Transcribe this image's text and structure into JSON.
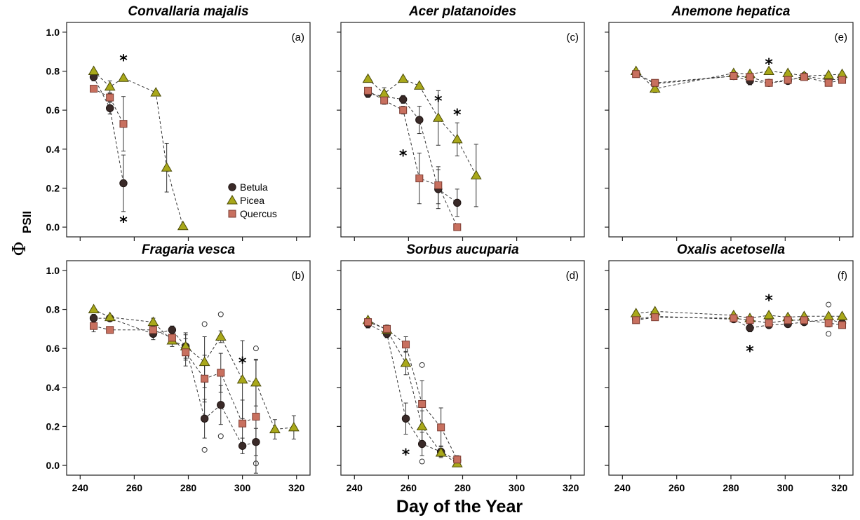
{
  "figure": {
    "xlabel": "Day of the Year",
    "ylabel_main": "Φ",
    "ylabel_sub": "PSII",
    "legend": [
      "Betula",
      "Picea",
      "Quercus"
    ]
  },
  "colors": {
    "betula": "#3a2a28",
    "picea": "#a9a81a",
    "quercus": "#c8705f"
  },
  "chart_data": [
    {
      "type": "scatter",
      "panel": "(a)",
      "title": "Convallaria majalis",
      "xlim": [
        235,
        325
      ],
      "ylim": [
        -0.05,
        1.05
      ],
      "xticks": [
        240,
        260,
        280,
        300,
        320
      ],
      "yticks": [
        "0.0",
        "0.2",
        "0.4",
        "0.6",
        "0.8",
        "1.0"
      ],
      "series": [
        {
          "name": "Betula",
          "x": [
            245,
            251,
            256
          ],
          "y": [
            0.77,
            0.61,
            0.225
          ],
          "err": [
            0.02,
            0.03,
            0.145
          ]
        },
        {
          "name": "Picea",
          "x": [
            245,
            251,
            256,
            268,
            272,
            278
          ],
          "y": [
            0.8,
            0.72,
            0.765,
            0.69,
            0.305,
            0.005
          ],
          "err": [
            0.01,
            0.03,
            0.01,
            0.01,
            0.125,
            0.0
          ]
        },
        {
          "name": "Quercus",
          "x": [
            245,
            251,
            256
          ],
          "y": [
            0.71,
            0.665,
            0.53
          ],
          "err": [
            0.01,
            0.02,
            0.14
          ]
        }
      ],
      "asterisks": [
        [
          256,
          0.88
        ],
        [
          256,
          0.05
        ]
      ]
    },
    {
      "type": "scatter",
      "panel": "(c)",
      "title": "Acer platanoides",
      "xlim": [
        235,
        325
      ],
      "ylim": [
        -0.05,
        1.05
      ],
      "xticks": [
        240,
        260,
        280,
        300,
        320
      ],
      "yticks": [
        "0.0",
        "0.2",
        "0.4",
        "0.6",
        "0.8",
        "1.0"
      ],
      "series": [
        {
          "name": "Betula",
          "x": [
            245,
            251,
            258,
            264,
            271,
            278
          ],
          "y": [
            0.685,
            0.67,
            0.655,
            0.55,
            0.195,
            0.125
          ],
          "err": [
            0.02,
            0.02,
            0.02,
            0.07,
            0.1,
            0.07
          ]
        },
        {
          "name": "Picea",
          "x": [
            245,
            251,
            258,
            264,
            271,
            278,
            285
          ],
          "y": [
            0.76,
            0.685,
            0.76,
            0.725,
            0.56,
            0.45,
            0.265
          ],
          "err": [
            0.01,
            0.03,
            0.01,
            0.01,
            0.14,
            0.085,
            0.16
          ]
        },
        {
          "name": "Quercus",
          "x": [
            245,
            251,
            258,
            264,
            271,
            278
          ],
          "y": [
            0.7,
            0.65,
            0.6,
            0.25,
            0.215,
            0.0
          ],
          "err": [
            0.015,
            0.02,
            0.02,
            0.13,
            0.095,
            0.0
          ]
        }
      ],
      "asterisks": [
        [
          271,
          0.67
        ],
        [
          278,
          0.6
        ],
        [
          258,
          0.39
        ]
      ]
    },
    {
      "type": "scatter",
      "panel": "(e)",
      "title": "Anemone hepatica",
      "xlim": [
        235,
        325
      ],
      "ylim": [
        -0.05,
        1.05
      ],
      "xticks": [
        240,
        260,
        280,
        300,
        320
      ],
      "yticks": [
        "0.0",
        "0.2",
        "0.4",
        "0.6",
        "0.8",
        "1.0"
      ],
      "series": [
        {
          "name": "Betula",
          "x": [
            245,
            252,
            281,
            287,
            294,
            301,
            307,
            316,
            321
          ],
          "y": [
            0.79,
            0.735,
            0.775,
            0.75,
            0.74,
            0.75,
            0.775,
            0.755,
            0.76
          ],
          "err": [
            0.01,
            0.01,
            0.01,
            0.02,
            0.01,
            0.01,
            0.01,
            0.01,
            0.01
          ]
        },
        {
          "name": "Picea",
          "x": [
            245,
            252,
            281,
            287,
            294,
            301,
            307,
            316,
            321
          ],
          "y": [
            0.8,
            0.71,
            0.79,
            0.785,
            0.8,
            0.79,
            0.775,
            0.78,
            0.785
          ],
          "err": [
            0.01,
            0.02,
            0.01,
            0.01,
            0.01,
            0.01,
            0.01,
            0.01,
            0.01
          ]
        },
        {
          "name": "Quercus",
          "x": [
            245,
            252,
            281,
            287,
            294,
            301,
            307,
            316,
            321
          ],
          "y": [
            0.785,
            0.74,
            0.775,
            0.77,
            0.74,
            0.755,
            0.77,
            0.74,
            0.755
          ],
          "err": [
            0.01,
            0.01,
            0.01,
            0.01,
            0.01,
            0.01,
            0.01,
            0.01,
            0.01
          ]
        }
      ],
      "asterisks": [
        [
          294,
          0.86
        ]
      ]
    },
    {
      "type": "scatter",
      "panel": "(b)",
      "title": "Fragaria vesca",
      "xlim": [
        235,
        325
      ],
      "ylim": [
        -0.05,
        1.05
      ],
      "xticks": [
        240,
        260,
        280,
        300,
        320
      ],
      "yticks": [
        "0.0",
        "0.2",
        "0.4",
        "0.6",
        "0.8",
        "1.0"
      ],
      "series": [
        {
          "name": "Betula",
          "x": [
            245,
            251,
            267,
            274,
            279,
            286,
            292,
            300,
            305
          ],
          "y": [
            0.755,
            0.755,
            0.675,
            0.695,
            0.61,
            0.24,
            0.31,
            0.1,
            0.12
          ],
          "err": [
            0.02,
            0.01,
            0.03,
            0.02,
            0.07,
            0.1,
            0.1,
            0.04,
            0.07
          ]
        },
        {
          "name": "Picea",
          "x": [
            245,
            251,
            267,
            274,
            279,
            286,
            292,
            300,
            305,
            312,
            319
          ],
          "y": [
            0.8,
            0.76,
            0.735,
            0.64,
            0.61,
            0.53,
            0.66,
            0.44,
            0.425,
            0.185,
            0.195
          ],
          "err": [
            0.01,
            0.01,
            0.02,
            0.03,
            0.06,
            0.13,
            0.03,
            0.2,
            0.12,
            0.05,
            0.06
          ]
        },
        {
          "name": "Quercus",
          "x": [
            245,
            251,
            267,
            274,
            279,
            286,
            292,
            300,
            305
          ],
          "y": [
            0.715,
            0.695,
            0.695,
            0.655,
            0.58,
            0.445,
            0.475,
            0.215,
            0.25
          ],
          "err": [
            0.03,
            0.01,
            0.02,
            0.03,
            0.07,
            0.12,
            0.1,
            0.12,
            0.29
          ]
        }
      ],
      "outliers": [
        [
          286,
          0.725
        ],
        [
          286,
          0.08
        ],
        [
          292,
          0.775
        ],
        [
          292,
          0.15
        ],
        [
          305,
          0.6
        ],
        [
          305,
          0.01
        ]
      ],
      "asterisks": [
        [
          300,
          0.55
        ]
      ]
    },
    {
      "type": "scatter",
      "panel": "(d)",
      "title": "Sorbus aucuparia",
      "xlim": [
        235,
        325
      ],
      "ylim": [
        -0.05,
        1.05
      ],
      "xticks": [
        240,
        260,
        280,
        300,
        320
      ],
      "yticks": [
        "0.0",
        "0.2",
        "0.4",
        "0.6",
        "0.8",
        "1.0"
      ],
      "series": [
        {
          "name": "Betula",
          "x": [
            245,
            252,
            259,
            265,
            272,
            278
          ],
          "y": [
            0.725,
            0.675,
            0.24,
            0.11,
            0.07,
            0.025
          ],
          "err": [
            0.02,
            0.02,
            0.08,
            0.06,
            0.03,
            0.01
          ]
        },
        {
          "name": "Picea",
          "x": [
            245,
            252,
            259,
            265,
            272,
            278
          ],
          "y": [
            0.745,
            0.695,
            0.525,
            0.2,
            0.065,
            0.01
          ],
          "err": [
            0.01,
            0.02,
            0.06,
            0.08,
            0.02,
            0.005
          ]
        },
        {
          "name": "Quercus",
          "x": [
            245,
            252,
            259,
            265,
            272,
            278
          ],
          "y": [
            0.735,
            0.7,
            0.62,
            0.315,
            0.195,
            0.03
          ],
          "err": [
            0.01,
            0.02,
            0.04,
            0.12,
            0.1,
            0.02
          ]
        }
      ],
      "outliers": [
        [
          265,
          0.515
        ],
        [
          265,
          0.02
        ]
      ],
      "asterisks": [
        [
          259,
          0.08
        ]
      ]
    },
    {
      "type": "scatter",
      "panel": "(f)",
      "title": "Oxalis acetosella",
      "xlim": [
        235,
        325
      ],
      "ylim": [
        -0.05,
        1.05
      ],
      "xticks": [
        240,
        260,
        280,
        300,
        320
      ],
      "yticks": [
        "0.0",
        "0.2",
        "0.4",
        "0.6",
        "0.8",
        "1.0"
      ],
      "series": [
        {
          "name": "Betula",
          "x": [
            245,
            252,
            281,
            287,
            294,
            301,
            307,
            316,
            321
          ],
          "y": [
            0.75,
            0.765,
            0.75,
            0.705,
            0.72,
            0.725,
            0.735,
            0.75,
            0.73
          ],
          "err": [
            0.01,
            0.01,
            0.01,
            0.02,
            0.01,
            0.01,
            0.01,
            0.02,
            0.01
          ]
        },
        {
          "name": "Picea",
          "x": [
            245,
            252,
            281,
            287,
            294,
            301,
            307,
            316,
            321
          ],
          "y": [
            0.78,
            0.79,
            0.77,
            0.755,
            0.77,
            0.76,
            0.765,
            0.765,
            0.765
          ],
          "err": [
            0.01,
            0.01,
            0.01,
            0.01,
            0.01,
            0.01,
            0.01,
            0.01,
            0.01
          ]
        },
        {
          "name": "Quercus",
          "x": [
            245,
            252,
            281,
            287,
            294,
            301,
            307,
            316,
            321
          ],
          "y": [
            0.745,
            0.76,
            0.755,
            0.745,
            0.73,
            0.745,
            0.745,
            0.73,
            0.72
          ],
          "err": [
            0.01,
            0.01,
            0.01,
            0.01,
            0.01,
            0.01,
            0.01,
            0.02,
            0.01
          ]
        }
      ],
      "outliers": [
        [
          316,
          0.825
        ],
        [
          316,
          0.675
        ]
      ],
      "asterisks": [
        [
          294,
          0.87
        ],
        [
          287,
          0.61
        ]
      ]
    }
  ]
}
